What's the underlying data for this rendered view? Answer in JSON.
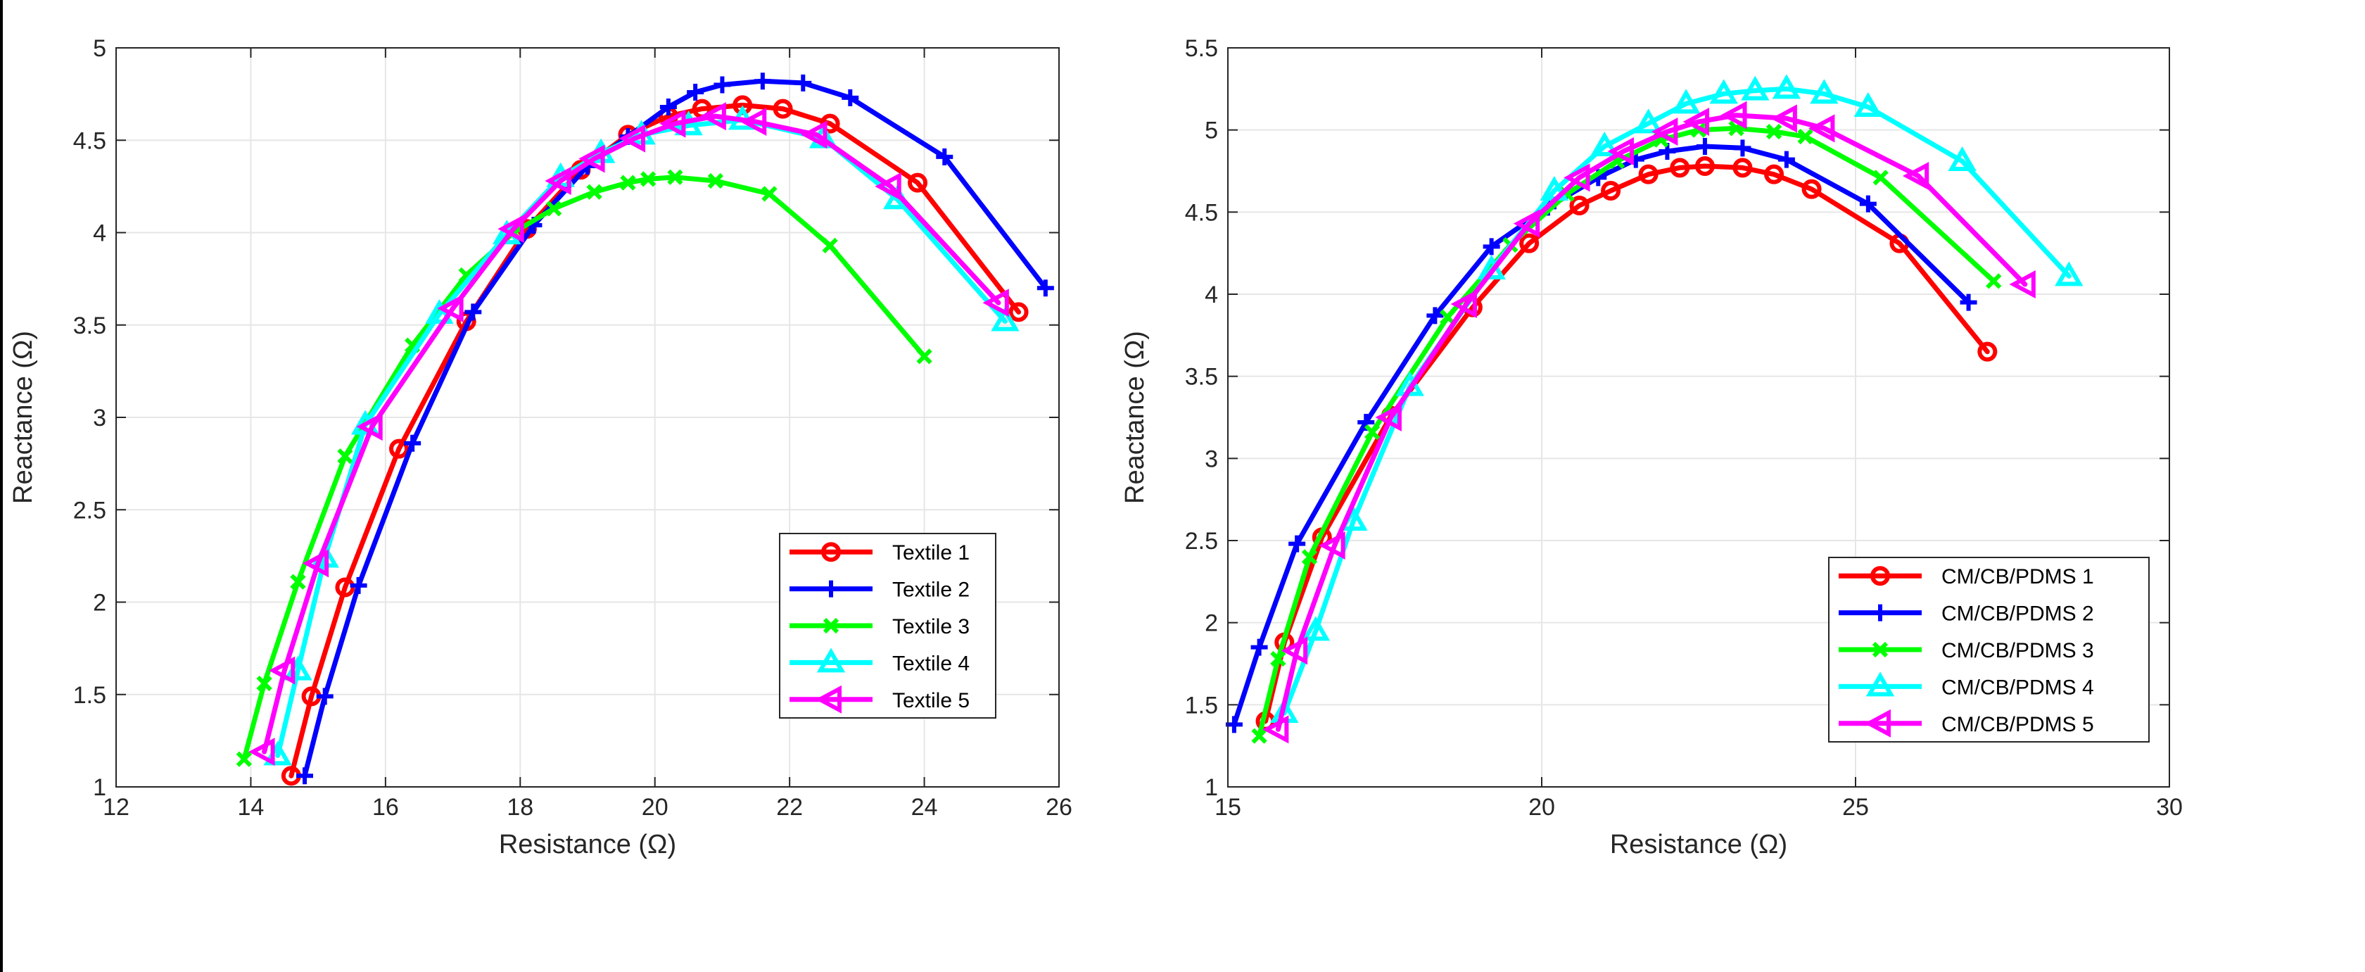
{
  "chart_data": [
    {
      "type": "line",
      "title": "",
      "xlabel": "Resistance (Ω)",
      "ylabel": "Reactance (Ω)",
      "xlim": [
        12,
        26
      ],
      "ylim": [
        1,
        5
      ],
      "xticks": [
        12,
        14,
        16,
        18,
        20,
        22,
        24,
        26
      ],
      "yticks": [
        1,
        1.5,
        2,
        2.5,
        3,
        3.5,
        4,
        4.5,
        5
      ],
      "xtick_labels": [
        "12",
        "14",
        "16",
        "18",
        "20",
        "22",
        "24",
        "26"
      ],
      "ytick_labels": [
        "1",
        "1.5",
        "2",
        "2.5",
        "3",
        "3.5",
        "4",
        "4.5",
        "5"
      ],
      "grid": true,
      "legend_position": "lower-right",
      "series": [
        {
          "name": "Textile 1",
          "color": "#ff0000",
          "marker": "circle",
          "points": [
            [
              14.6,
              1.06
            ],
            [
              14.9,
              1.49
            ],
            [
              15.4,
              2.08
            ],
            [
              16.2,
              2.83
            ],
            [
              17.2,
              3.52
            ],
            [
              18.1,
              4.02
            ],
            [
              18.9,
              4.34
            ],
            [
              19.6,
              4.53
            ],
            [
              20.2,
              4.63
            ],
            [
              20.7,
              4.67
            ],
            [
              21.3,
              4.69
            ],
            [
              21.9,
              4.67
            ],
            [
              22.6,
              4.59
            ],
            [
              23.9,
              4.27
            ],
            [
              25.4,
              3.57
            ]
          ]
        },
        {
          "name": "Textile 2",
          "color": "#0000ff",
          "marker": "plus",
          "points": [
            [
              14.8,
              1.06
            ],
            [
              15.1,
              1.49
            ],
            [
              15.6,
              2.09
            ],
            [
              16.4,
              2.86
            ],
            [
              17.3,
              3.57
            ],
            [
              18.2,
              4.04
            ],
            [
              19,
              4.36
            ],
            [
              19.6,
              4.52
            ],
            [
              20.2,
              4.68
            ],
            [
              20.6,
              4.76
            ],
            [
              21,
              4.8
            ],
            [
              21.6,
              4.82
            ],
            [
              22.2,
              4.81
            ],
            [
              22.9,
              4.73
            ],
            [
              24.3,
              4.41
            ],
            [
              25.8,
              3.7
            ]
          ]
        },
        {
          "name": "Textile 3",
          "color": "#00ff00",
          "marker": "x",
          "points": [
            [
              13.9,
              1.15
            ],
            [
              14.2,
              1.56
            ],
            [
              14.7,
              2.11
            ],
            [
              15.4,
              2.79
            ],
            [
              16.4,
              3.39
            ],
            [
              17.2,
              3.77
            ],
            [
              17.9,
              4.0
            ],
            [
              18.5,
              4.13
            ],
            [
              19.1,
              4.22
            ],
            [
              19.6,
              4.27
            ],
            [
              19.9,
              4.29
            ],
            [
              20.3,
              4.3
            ],
            [
              20.9,
              4.28
            ],
            [
              21.7,
              4.21
            ],
            [
              22.6,
              3.93
            ],
            [
              24,
              3.33
            ]
          ]
        },
        {
          "name": "Textile 4",
          "color": "#00ffff",
          "marker": "triangle-up",
          "points": [
            [
              14.4,
              1.17
            ],
            [
              14.7,
              1.63
            ],
            [
              15.1,
              2.24
            ],
            [
              15.7,
              2.96
            ],
            [
              16.8,
              3.56
            ],
            [
              17.8,
              3.99
            ],
            [
              18.6,
              4.3
            ],
            [
              19.2,
              4.43
            ],
            [
              19.8,
              4.53
            ],
            [
              20.5,
              4.58
            ],
            [
              21.3,
              4.61
            ],
            [
              22.5,
              4.51
            ],
            [
              23.6,
              4.18
            ],
            [
              25.2,
              3.52
            ]
          ]
        },
        {
          "name": "Textile 5",
          "color": "#ff00ff",
          "marker": "triangle-left",
          "points": [
            [
              14.2,
              1.19
            ],
            [
              14.5,
              1.63
            ],
            [
              15,
              2.21
            ],
            [
              15.8,
              2.95
            ],
            [
              17,
              3.59
            ],
            [
              17.9,
              4.02
            ],
            [
              18.6,
              4.28
            ],
            [
              19.1,
              4.4
            ],
            [
              19.7,
              4.51
            ],
            [
              20.3,
              4.59
            ],
            [
              20.9,
              4.63
            ],
            [
              21.5,
              4.6
            ],
            [
              22.4,
              4.53
            ],
            [
              23.5,
              4.25
            ],
            [
              25.1,
              3.62
            ]
          ]
        }
      ],
      "legend": [
        "Textile 1",
        "Textile 2",
        "Textile 3",
        "Textile 4",
        "Textile 5"
      ]
    },
    {
      "type": "line",
      "title": "",
      "xlabel": "Resistance (Ω)",
      "ylabel": "Reactance (Ω)",
      "xlim": [
        15,
        30
      ],
      "ylim": [
        1,
        5.5
      ],
      "xticks": [
        15,
        20,
        25,
        30
      ],
      "yticks": [
        1,
        1.5,
        2,
        2.5,
        3,
        3.5,
        4,
        4.5,
        5,
        5.5
      ],
      "xtick_labels": [
        "15",
        "20",
        "25",
        "30"
      ],
      "ytick_labels": [
        "1",
        "1.5",
        "2",
        "2.5",
        "3",
        "3.5",
        "4",
        "4.5",
        "5",
        "5.5"
      ],
      "grid": true,
      "legend_position": "lower-right",
      "series": [
        {
          "name": "CM/CB/PDMS 1",
          "color": "#ff0000",
          "marker": "circle",
          "points": [
            [
              15.6,
              1.4
            ],
            [
              15.9,
              1.88
            ],
            [
              16.5,
              2.52
            ],
            [
              17.6,
              3.26
            ],
            [
              18.9,
              3.92
            ],
            [
              19.8,
              4.31
            ],
            [
              20.6,
              4.54
            ],
            [
              21.1,
              4.63
            ],
            [
              21.7,
              4.73
            ],
            [
              22.2,
              4.77
            ],
            [
              22.6,
              4.78
            ],
            [
              23.2,
              4.77
            ],
            [
              23.7,
              4.73
            ],
            [
              24.3,
              4.64
            ],
            [
              25.7,
              4.31
            ],
            [
              27.1,
              3.65
            ]
          ]
        },
        {
          "name": "CM/CB/PDMS 2",
          "color": "#0000ff",
          "marker": "plus",
          "points": [
            [
              15.1,
              1.38
            ],
            [
              15.5,
              1.85
            ],
            [
              16.1,
              2.48
            ],
            [
              17.2,
              3.22
            ],
            [
              18.3,
              3.87
            ],
            [
              19.2,
              4.29
            ],
            [
              20.1,
              4.53
            ],
            [
              20.9,
              4.71
            ],
            [
              21.5,
              4.82
            ],
            [
              22,
              4.87
            ],
            [
              22.6,
              4.9
            ],
            [
              23.2,
              4.89
            ],
            [
              23.9,
              4.82
            ],
            [
              25.2,
              4.55
            ],
            [
              26.8,
              3.95
            ]
          ]
        },
        {
          "name": "CM/CB/PDMS 3",
          "color": "#00ff00",
          "marker": "x",
          "points": [
            [
              15.5,
              1.31
            ],
            [
              15.8,
              1.78
            ],
            [
              16.3,
              2.4
            ],
            [
              17.3,
              3.16
            ],
            [
              18.5,
              3.86
            ],
            [
              19.5,
              4.3
            ],
            [
              20.4,
              4.61
            ],
            [
              21.2,
              4.81
            ],
            [
              21.9,
              4.94
            ],
            [
              22.5,
              5.0
            ],
            [
              23.1,
              5.01
            ],
            [
              23.7,
              4.99
            ],
            [
              24.2,
              4.96
            ],
            [
              25.4,
              4.71
            ],
            [
              27.2,
              4.08
            ]
          ]
        },
        {
          "name": "CM/CB/PDMS 4",
          "color": "#00ffff",
          "marker": "triangle-up",
          "points": [
            [
              15.9,
              1.45
            ],
            [
              16.4,
              1.95
            ],
            [
              17,
              2.62
            ],
            [
              17.9,
              3.44
            ],
            [
              19.2,
              4.15
            ],
            [
              20.2,
              4.63
            ],
            [
              21,
              4.9
            ],
            [
              21.7,
              5.04
            ],
            [
              22.3,
              5.16
            ],
            [
              22.9,
              5.22
            ],
            [
              23.4,
              5.24
            ],
            [
              23.9,
              5.25
            ],
            [
              24.5,
              5.22
            ],
            [
              25.2,
              5.14
            ],
            [
              26.7,
              4.81
            ],
            [
              28.4,
              4.11
            ]
          ]
        },
        {
          "name": "CM/CB/PDMS 5",
          "color": "#ff00ff",
          "marker": "triangle-left",
          "points": [
            [
              15.8,
              1.35
            ],
            [
              16.1,
              1.83
            ],
            [
              16.7,
              2.47
            ],
            [
              17.6,
              3.25
            ],
            [
              18.8,
              3.94
            ],
            [
              19.8,
              4.43
            ],
            [
              20.6,
              4.71
            ],
            [
              21.3,
              4.87
            ],
            [
              22,
              4.99
            ],
            [
              22.5,
              5.05
            ],
            [
              23.1,
              5.09
            ],
            [
              23.9,
              5.07
            ],
            [
              24.5,
              5.01
            ],
            [
              26,
              4.72
            ],
            [
              27.7,
              4.06
            ]
          ]
        }
      ],
      "legend": [
        "CM/CB/PDMS 1",
        "CM/CB/PDMS 2",
        "CM/CB/PDMS 3",
        "CM/CB/PDMS 4",
        "CM/CB/PDMS 5"
      ]
    }
  ]
}
